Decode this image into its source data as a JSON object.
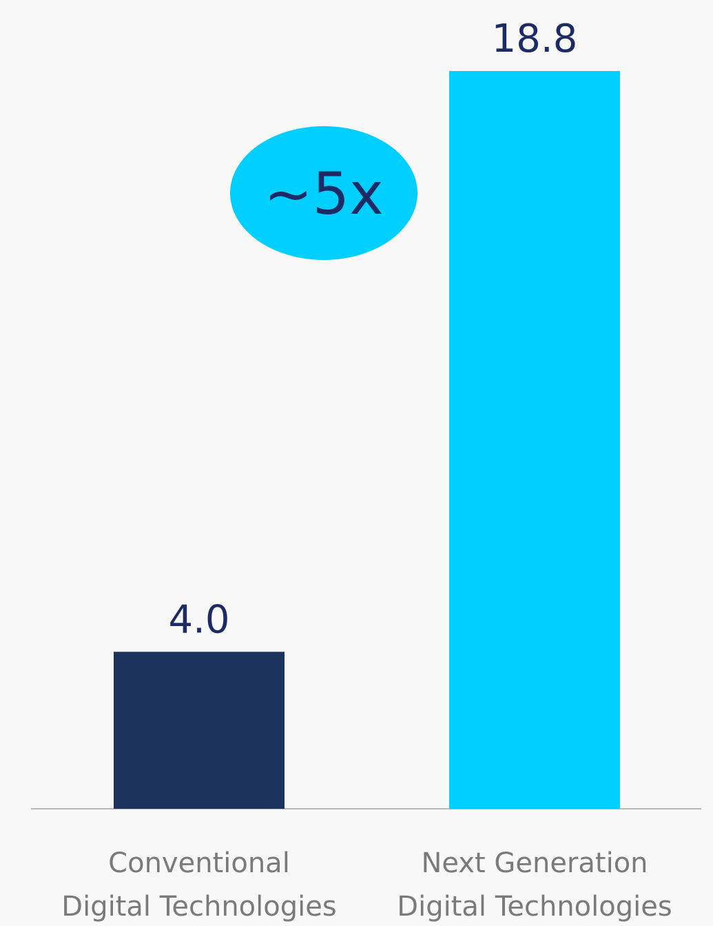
{
  "chart_data": {
    "type": "bar",
    "categories": [
      [
        "Conventional",
        "Digital Technologies"
      ],
      [
        "Next Generation",
        "Digital Technologies"
      ]
    ],
    "values": [
      4.0,
      18.8
    ],
    "value_labels": [
      "4.0",
      "18.8"
    ],
    "bar_colors": [
      "#1c335e",
      "#00cfff"
    ],
    "ylim": [
      0,
      18.8
    ],
    "grid": false,
    "axis_line_color": "#b8b8b8",
    "annotation": {
      "text": "~5x",
      "fill": "#00cfff",
      "text_color": "#1c2b63"
    }
  }
}
